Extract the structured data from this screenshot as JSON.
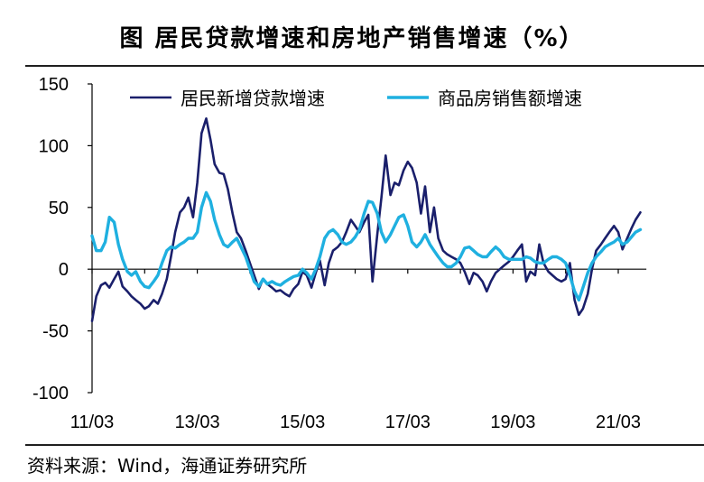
{
  "chart_data": {
    "type": "line",
    "title": "图  居民贷款增速和房地产销售增速（%）",
    "source": "资料来源：Wind，海通证券研究所",
    "xlabel": "",
    "ylabel": "",
    "ylim": [
      -100,
      150
    ],
    "yticks": [
      150,
      100,
      50,
      0,
      -50,
      -100
    ],
    "xlim": [
      "2011-03",
      "2021-06"
    ],
    "xticks": [
      "11/03",
      "13/03",
      "15/03",
      "17/03",
      "19/03",
      "21/03"
    ],
    "legend_position": "top",
    "colors": {
      "loans": "#1a1f6b",
      "sales": "#1fb0e0",
      "axis": "#000000"
    },
    "series": [
      {
        "name": "居民新增贷款增速",
        "color": "#1a1f6b",
        "points": [
          [
            0.0,
            -42
          ],
          [
            0.08,
            -22
          ],
          [
            0.17,
            -13
          ],
          [
            0.25,
            -11
          ],
          [
            0.33,
            -15
          ],
          [
            0.42,
            -8
          ],
          [
            0.5,
            -2
          ],
          [
            0.58,
            -14
          ],
          [
            0.67,
            -18
          ],
          [
            0.75,
            -22
          ],
          [
            0.83,
            -25
          ],
          [
            0.92,
            -28
          ],
          [
            1.0,
            -32
          ],
          [
            1.08,
            -30
          ],
          [
            1.17,
            -25
          ],
          [
            1.25,
            -28
          ],
          [
            1.33,
            -20
          ],
          [
            1.42,
            -8
          ],
          [
            1.5,
            10
          ],
          [
            1.58,
            30
          ],
          [
            1.67,
            46
          ],
          [
            1.75,
            50
          ],
          [
            1.83,
            58
          ],
          [
            1.92,
            42
          ],
          [
            2.0,
            70
          ],
          [
            2.08,
            110
          ],
          [
            2.17,
            122
          ],
          [
            2.25,
            105
          ],
          [
            2.33,
            85
          ],
          [
            2.42,
            78
          ],
          [
            2.5,
            77
          ],
          [
            2.58,
            65
          ],
          [
            2.67,
            45
          ],
          [
            2.75,
            30
          ],
          [
            2.83,
            25
          ],
          [
            2.92,
            15
          ],
          [
            3.0,
            5
          ],
          [
            3.08,
            -5
          ],
          [
            3.17,
            -16
          ],
          [
            3.25,
            -8
          ],
          [
            3.33,
            -12
          ],
          [
            3.42,
            -15
          ],
          [
            3.5,
            -18
          ],
          [
            3.58,
            -17
          ],
          [
            3.67,
            -20
          ],
          [
            3.75,
            -22
          ],
          [
            3.83,
            -16
          ],
          [
            3.92,
            -12
          ],
          [
            4.0,
            -2
          ],
          [
            4.08,
            -5
          ],
          [
            4.17,
            -15
          ],
          [
            4.25,
            -3
          ],
          [
            4.33,
            7
          ],
          [
            4.42,
            -13
          ],
          [
            4.5,
            5
          ],
          [
            4.58,
            15
          ],
          [
            4.67,
            18
          ],
          [
            4.75,
            22
          ],
          [
            4.83,
            30
          ],
          [
            4.92,
            40
          ],
          [
            5.0,
            35
          ],
          [
            5.08,
            30
          ],
          [
            5.17,
            38
          ],
          [
            5.25,
            44
          ],
          [
            5.33,
            -10
          ],
          [
            5.42,
            28
          ],
          [
            5.5,
            58
          ],
          [
            5.58,
            92
          ],
          [
            5.67,
            60
          ],
          [
            5.75,
            70
          ],
          [
            5.83,
            68
          ],
          [
            5.92,
            80
          ],
          [
            6.0,
            87
          ],
          [
            6.08,
            82
          ],
          [
            6.17,
            70
          ],
          [
            6.25,
            45
          ],
          [
            6.33,
            67
          ],
          [
            6.42,
            30
          ],
          [
            6.5,
            50
          ],
          [
            6.58,
            25
          ],
          [
            6.67,
            15
          ],
          [
            6.75,
            12
          ],
          [
            6.83,
            10
          ],
          [
            6.92,
            8
          ],
          [
            7.0,
            5
          ],
          [
            7.08,
            -2
          ],
          [
            7.17,
            -12
          ],
          [
            7.25,
            -3
          ],
          [
            7.33,
            -5
          ],
          [
            7.42,
            -10
          ],
          [
            7.5,
            -18
          ],
          [
            7.58,
            -10
          ],
          [
            7.67,
            -3
          ],
          [
            7.75,
            0
          ],
          [
            7.83,
            3
          ],
          [
            7.92,
            6
          ],
          [
            8.0,
            10
          ],
          [
            8.08,
            15
          ],
          [
            8.17,
            20
          ],
          [
            8.25,
            -10
          ],
          [
            8.33,
            -2
          ],
          [
            8.42,
            -5
          ],
          [
            8.5,
            20
          ],
          [
            8.58,
            5
          ],
          [
            8.67,
            -2
          ],
          [
            8.75,
            -5
          ],
          [
            8.83,
            -8
          ],
          [
            8.92,
            -10
          ],
          [
            9.0,
            -8
          ],
          [
            9.08,
            5
          ],
          [
            9.17,
            -25
          ],
          [
            9.25,
            -37
          ],
          [
            9.33,
            -32
          ],
          [
            9.42,
            -20
          ],
          [
            9.5,
            0
          ],
          [
            9.58,
            15
          ],
          [
            9.67,
            20
          ],
          [
            9.75,
            25
          ],
          [
            9.83,
            30
          ],
          [
            9.92,
            35
          ],
          [
            10.0,
            30
          ],
          [
            10.08,
            16
          ],
          [
            10.17,
            25
          ],
          [
            10.25,
            33
          ],
          [
            10.33,
            40
          ],
          [
            10.42,
            46
          ]
        ]
      },
      {
        "name": "商品房销售额增速",
        "color": "#1fb0e0",
        "points": [
          [
            0.0,
            27
          ],
          [
            0.08,
            15
          ],
          [
            0.17,
            15
          ],
          [
            0.25,
            22
          ],
          [
            0.33,
            42
          ],
          [
            0.42,
            38
          ],
          [
            0.5,
            20
          ],
          [
            0.58,
            8
          ],
          [
            0.67,
            -2
          ],
          [
            0.75,
            -5
          ],
          [
            0.83,
            -2
          ],
          [
            0.92,
            -10
          ],
          [
            1.0,
            -14
          ],
          [
            1.08,
            -15
          ],
          [
            1.17,
            -10
          ],
          [
            1.25,
            -5
          ],
          [
            1.33,
            5
          ],
          [
            1.42,
            15
          ],
          [
            1.5,
            18
          ],
          [
            1.58,
            17
          ],
          [
            1.67,
            20
          ],
          [
            1.75,
            22
          ],
          [
            1.83,
            25
          ],
          [
            1.92,
            25
          ],
          [
            2.0,
            30
          ],
          [
            2.08,
            50
          ],
          [
            2.17,
            62
          ],
          [
            2.25,
            55
          ],
          [
            2.33,
            40
          ],
          [
            2.42,
            28
          ],
          [
            2.5,
            20
          ],
          [
            2.58,
            18
          ],
          [
            2.67,
            22
          ],
          [
            2.75,
            25
          ],
          [
            2.83,
            18
          ],
          [
            2.92,
            10
          ],
          [
            3.0,
            0
          ],
          [
            3.08,
            -10
          ],
          [
            3.17,
            -14
          ],
          [
            3.25,
            -8
          ],
          [
            3.33,
            -12
          ],
          [
            3.42,
            -10
          ],
          [
            3.5,
            -12
          ],
          [
            3.58,
            -13
          ],
          [
            3.67,
            -10
          ],
          [
            3.75,
            -8
          ],
          [
            3.83,
            -6
          ],
          [
            3.92,
            -5
          ],
          [
            4.0,
            0
          ],
          [
            4.08,
            -3
          ],
          [
            4.17,
            -8
          ],
          [
            4.25,
            0
          ],
          [
            4.33,
            10
          ],
          [
            4.42,
            25
          ],
          [
            4.5,
            30
          ],
          [
            4.58,
            32
          ],
          [
            4.67,
            28
          ],
          [
            4.75,
            22
          ],
          [
            4.83,
            20
          ],
          [
            4.92,
            22
          ],
          [
            5.0,
            26
          ],
          [
            5.08,
            32
          ],
          [
            5.17,
            45
          ],
          [
            5.25,
            55
          ],
          [
            5.33,
            54
          ],
          [
            5.42,
            45
          ],
          [
            5.5,
            30
          ],
          [
            5.58,
            22
          ],
          [
            5.67,
            28
          ],
          [
            5.75,
            35
          ],
          [
            5.83,
            42
          ],
          [
            5.92,
            44
          ],
          [
            6.0,
            35
          ],
          [
            6.08,
            22
          ],
          [
            6.17,
            18
          ],
          [
            6.25,
            22
          ],
          [
            6.33,
            28
          ],
          [
            6.42,
            20
          ],
          [
            6.5,
            15
          ],
          [
            6.58,
            10
          ],
          [
            6.67,
            5
          ],
          [
            6.75,
            2
          ],
          [
            6.83,
            2
          ],
          [
            6.92,
            5
          ],
          [
            7.0,
            10
          ],
          [
            7.08,
            17
          ],
          [
            7.17,
            18
          ],
          [
            7.25,
            15
          ],
          [
            7.33,
            12
          ],
          [
            7.42,
            10
          ],
          [
            7.5,
            10
          ],
          [
            7.58,
            14
          ],
          [
            7.67,
            18
          ],
          [
            7.75,
            15
          ],
          [
            7.83,
            10
          ],
          [
            7.92,
            8
          ],
          [
            8.0,
            8
          ],
          [
            8.08,
            8
          ],
          [
            8.17,
            8
          ],
          [
            8.25,
            10
          ],
          [
            8.33,
            9
          ],
          [
            8.42,
            6
          ],
          [
            8.5,
            5
          ],
          [
            8.58,
            5
          ],
          [
            8.67,
            8
          ],
          [
            8.75,
            10
          ],
          [
            8.83,
            10
          ],
          [
            8.92,
            8
          ],
          [
            9.0,
            5
          ],
          [
            9.08,
            -5
          ],
          [
            9.17,
            -18
          ],
          [
            9.25,
            -25
          ],
          [
            9.33,
            -15
          ],
          [
            9.42,
            -3
          ],
          [
            9.5,
            5
          ],
          [
            9.58,
            10
          ],
          [
            9.67,
            14
          ],
          [
            9.75,
            18
          ],
          [
            9.83,
            20
          ],
          [
            9.92,
            22
          ],
          [
            10.0,
            25
          ],
          [
            10.08,
            20
          ],
          [
            10.17,
            22
          ],
          [
            10.25,
            26
          ],
          [
            10.33,
            30
          ],
          [
            10.42,
            32
          ]
        ]
      }
    ]
  }
}
